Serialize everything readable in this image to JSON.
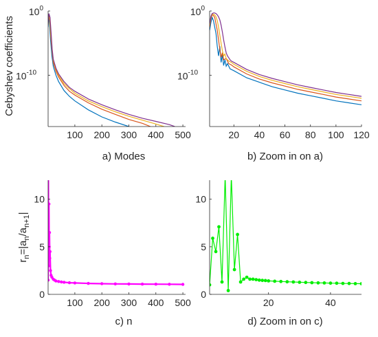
{
  "chart_data": [
    {
      "type": "line",
      "panel": "a",
      "xlabel": "a) Modes",
      "ylabel": "Cebyshev coefficients",
      "yscale": "log",
      "xlim": [
        1,
        510
      ],
      "ylim_exp": [
        -18,
        0
      ],
      "x_ticks": [
        100,
        200,
        300,
        400,
        500
      ],
      "y_ticks": [
        {
          "exp": 0,
          "label": "10",
          "sup": "0"
        },
        {
          "exp": -10,
          "label": "10",
          "sup": "-10"
        }
      ],
      "series_colors": [
        "#0072bd",
        "#d95319",
        "#edb120",
        "#7e2f8e"
      ],
      "series": [
        {
          "x": [
            1,
            3,
            6,
            10,
            15,
            20,
            30,
            40,
            60,
            80,
            100,
            150,
            200,
            250,
            300
          ],
          "y_exp": [
            -2.5,
            -0.7,
            -2.0,
            -4.5,
            -7.0,
            -8.6,
            -10.0,
            -11.0,
            -12.4,
            -13.3,
            -14.0,
            -15.4,
            -16.5,
            -17.3,
            -18.0
          ]
        },
        {
          "x": [
            1,
            3,
            7,
            11,
            16,
            20,
            30,
            40,
            60,
            80,
            100,
            150,
            200,
            250,
            300,
            350,
            380
          ],
          "y_exp": [
            -2.2,
            -0.6,
            -1.5,
            -4.0,
            -6.5,
            -8.0,
            -9.4,
            -10.3,
            -11.6,
            -12.5,
            -13.1,
            -14.3,
            -15.3,
            -16.1,
            -16.9,
            -17.5,
            -18.0
          ]
        },
        {
          "x": [
            1,
            4,
            7,
            11,
            16,
            20,
            30,
            40,
            60,
            80,
            100,
            150,
            200,
            250,
            300,
            350,
            400,
            430
          ],
          "y_exp": [
            -2.0,
            -0.5,
            -1.2,
            -3.6,
            -6.2,
            -7.7,
            -9.1,
            -10.0,
            -11.3,
            -12.1,
            -12.8,
            -14.0,
            -14.9,
            -15.7,
            -16.4,
            -17.0,
            -17.6,
            -18.0
          ]
        },
        {
          "x": [
            1,
            4,
            8,
            12,
            16,
            20,
            30,
            40,
            60,
            80,
            100,
            150,
            200,
            250,
            300,
            350,
            400,
            450,
            470
          ],
          "y_exp": [
            -1.9,
            -0.4,
            -1.0,
            -3.3,
            -5.9,
            -7.5,
            -8.9,
            -9.8,
            -11.0,
            -11.9,
            -12.5,
            -13.7,
            -14.6,
            -15.4,
            -16.1,
            -16.7,
            -17.2,
            -17.7,
            -18.0
          ]
        }
      ]
    },
    {
      "type": "line",
      "panel": "b",
      "xlabel": "b) Zoom in on a)",
      "yscale": "log",
      "xlim": [
        1,
        120
      ],
      "ylim_exp": [
        -18,
        0
      ],
      "x_ticks": [
        20,
        40,
        60,
        80,
        100,
        120
      ],
      "y_ticks": [
        {
          "exp": 0,
          "label": "10",
          "sup": "0"
        },
        {
          "exp": -10,
          "label": "10",
          "sup": "-10"
        }
      ],
      "series_colors": [
        "#0072bd",
        "#d95319",
        "#edb120",
        "#7e2f8e"
      ],
      "series": [
        {
          "x": [
            1,
            2,
            3,
            4,
            5,
            6,
            7,
            8,
            9,
            10,
            11,
            12,
            13,
            14,
            15,
            17,
            20,
            30,
            40,
            50,
            60,
            70,
            80,
            90,
            100,
            110,
            120
          ],
          "y_exp": [
            -3.0,
            -1.8,
            -1.0,
            -1.5,
            -2.5,
            -3.5,
            -5.5,
            -7.0,
            -5.5,
            -8.0,
            -6.8,
            -8.5,
            -7.6,
            -8.6,
            -8.2,
            -9.0,
            -9.3,
            -10.4,
            -11.1,
            -11.8,
            -12.3,
            -12.8,
            -13.2,
            -13.6,
            -14.0,
            -14.3,
            -14.6
          ]
        },
        {
          "x": [
            1,
            2,
            3,
            4,
            5,
            6,
            7,
            8,
            9,
            10,
            11,
            12,
            14,
            16,
            18,
            20,
            30,
            40,
            50,
            60,
            70,
            80,
            90,
            100,
            110,
            120
          ],
          "y_exp": [
            -2.5,
            -1.2,
            -0.6,
            -0.7,
            -1.0,
            -2.0,
            -3.0,
            -4.5,
            -6.0,
            -7.2,
            -6.5,
            -7.6,
            -7.4,
            -8.2,
            -8.4,
            -8.7,
            -9.8,
            -10.6,
            -11.2,
            -11.7,
            -12.2,
            -12.6,
            -13.0,
            -13.4,
            -13.7,
            -14.0
          ]
        },
        {
          "x": [
            1,
            2,
            3,
            4,
            5,
            6,
            7,
            8,
            9,
            10,
            11,
            12,
            13,
            14,
            16,
            18,
            20,
            30,
            40,
            50,
            60,
            70,
            80,
            90,
            100,
            110,
            120
          ],
          "y_exp": [
            -2.2,
            -1.0,
            -0.5,
            -0.5,
            -0.6,
            -0.9,
            -1.5,
            -2.5,
            -3.8,
            -5.0,
            -6.2,
            -7.0,
            -6.7,
            -7.4,
            -7.8,
            -8.0,
            -8.3,
            -9.4,
            -10.2,
            -10.8,
            -11.3,
            -11.8,
            -12.2,
            -12.6,
            -13.0,
            -13.3,
            -13.6
          ]
        },
        {
          "x": [
            1,
            2,
            3,
            4,
            5,
            6,
            7,
            8,
            9,
            10,
            11,
            12,
            13,
            14,
            15,
            16,
            17,
            18,
            20,
            30,
            40,
            50,
            60,
            70,
            80,
            90,
            100,
            110,
            120
          ],
          "y_exp": [
            -2.0,
            -0.8,
            -0.4,
            -0.3,
            -0.3,
            -0.4,
            -0.6,
            -0.9,
            -1.4,
            -2.2,
            -3.3,
            -4.5,
            -5.6,
            -6.5,
            -7.0,
            -7.3,
            -7.6,
            -7.8,
            -8.0,
            -9.1,
            -9.9,
            -10.5,
            -11.0,
            -11.5,
            -11.9,
            -12.3,
            -12.7,
            -13.0,
            -13.3
          ]
        }
      ]
    },
    {
      "type": "line",
      "panel": "c",
      "xlabel": "c) n",
      "ylabel": "r_n=|a_n/a_{n+1}|",
      "xlim": [
        1,
        510
      ],
      "ylim": [
        0,
        12
      ],
      "x_ticks": [
        100,
        200,
        300,
        400,
        500
      ],
      "y_ticks": [
        0,
        5,
        10
      ],
      "series_colors": [
        "#ff00ff"
      ],
      "series": [
        {
          "x": [
            1,
            2,
            3,
            4,
            5,
            6,
            7,
            8,
            10,
            12,
            15,
            20,
            25,
            30,
            40,
            50,
            60,
            80,
            100,
            150,
            200,
            250,
            300,
            350,
            400,
            450,
            500
          ],
          "y": [
            1.5,
            12.5,
            3.0,
            9.5,
            5.0,
            6.5,
            3.8,
            4.5,
            2.5,
            2.0,
            1.8,
            1.6,
            1.5,
            1.4,
            1.35,
            1.3,
            1.27,
            1.22,
            1.2,
            1.15,
            1.12,
            1.1,
            1.09,
            1.08,
            1.07,
            1.06,
            1.05
          ]
        }
      ]
    },
    {
      "type": "line",
      "panel": "d",
      "xlabel": "d) Zoom in on c)",
      "xlim": [
        1,
        50
      ],
      "ylim": [
        0,
        12
      ],
      "x_ticks": [
        20,
        40
      ],
      "y_ticks": [
        0,
        5,
        10
      ],
      "series_colors": [
        "#00ee00"
      ],
      "series": [
        {
          "x": [
            1,
            2,
            3,
            4,
            5,
            6,
            7,
            8,
            9,
            10,
            11,
            12,
            13,
            14,
            15,
            16,
            17,
            18,
            19,
            20,
            22,
            24,
            26,
            28,
            30,
            32,
            34,
            36,
            38,
            40,
            42,
            44,
            46,
            48,
            50
          ],
          "y": [
            1.0,
            5.9,
            4.5,
            7.1,
            1.3,
            12.5,
            0.4,
            12.5,
            2.6,
            6.3,
            1.3,
            1.6,
            1.8,
            1.6,
            1.6,
            1.55,
            1.5,
            1.47,
            1.45,
            1.42,
            1.38,
            1.35,
            1.32,
            1.3,
            1.27,
            1.25,
            1.23,
            1.21,
            1.2,
            1.18,
            1.17,
            1.15,
            1.14,
            1.13,
            1.12
          ]
        }
      ]
    }
  ]
}
